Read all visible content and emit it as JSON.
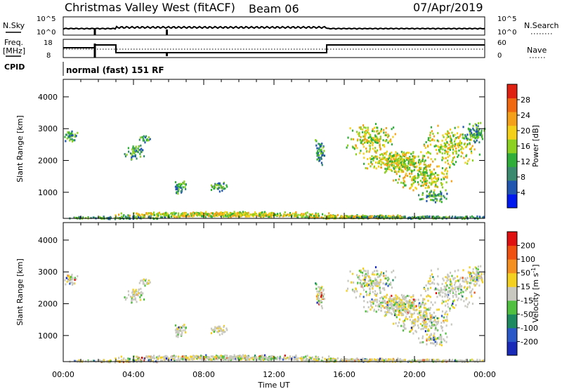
{
  "header": {
    "site": "Christmas Valley West (fitACF)",
    "beam": "Beam 06",
    "date": "07/Apr/2019"
  },
  "panels": {
    "nsky_label": "N.Sky",
    "nsky_ticks": [
      "10^5",
      "10^0"
    ],
    "nsearch_label": "N.Search",
    "nsearch_ticks": [
      "10^5",
      "10^0"
    ],
    "freq_label_1": "Freq.",
    "freq_label_2": "[MHz]",
    "freq_ticks": [
      "18",
      "8"
    ],
    "nave_label": "Nave",
    "nave_ticks": [
      "60",
      "0"
    ],
    "cpid_label": "CPID",
    "cpid_text": "normal (fast) 151 RF"
  },
  "chart_data": [
    {
      "type": "heatmap",
      "ylabel": "Slant Range [km]",
      "ylim": [
        180,
        4550
      ],
      "yticks": [
        1000,
        2000,
        3000,
        4000
      ],
      "xlim_hours": [
        0,
        24
      ],
      "colorbar": {
        "label": "Power [dB]",
        "ticks": [
          "4",
          "8",
          "12",
          "16",
          "20",
          "24",
          "28"
        ],
        "colors": [
          "#0018f0",
          "#2055b0",
          "#3a8a70",
          "#2fae3a",
          "#8cd020",
          "#f4d018",
          "#f4a018",
          "#f06810",
          "#e02010"
        ]
      }
    },
    {
      "type": "heatmap",
      "ylabel": "Velocity [m s",
      "ylabel_panel": "Slant Range [km]",
      "ylim": [
        180,
        4550
      ],
      "yticks": [
        1000,
        2000,
        3000,
        4000
      ],
      "xlim_hours": [
        0,
        24
      ],
      "colorbar": {
        "label": "Velocity [m s",
        "label_sup": "-1",
        "label_end": "]",
        "ticks": [
          "200",
          "100",
          "50",
          "15",
          "-15",
          "-50",
          "-100",
          "-200"
        ],
        "colors": [
          "#1a2ab8",
          "#2a58c8",
          "#1e8a60",
          "#50c040",
          "#c8c8c0",
          "#f4d020",
          "#f49020",
          "#f05010",
          "#e01010"
        ]
      }
    }
  ],
  "xaxis": {
    "ticks": [
      "00:00",
      "04:00",
      "08:00",
      "12:00",
      "16:00",
      "20:00",
      "00:00"
    ],
    "label": "Time UT"
  }
}
